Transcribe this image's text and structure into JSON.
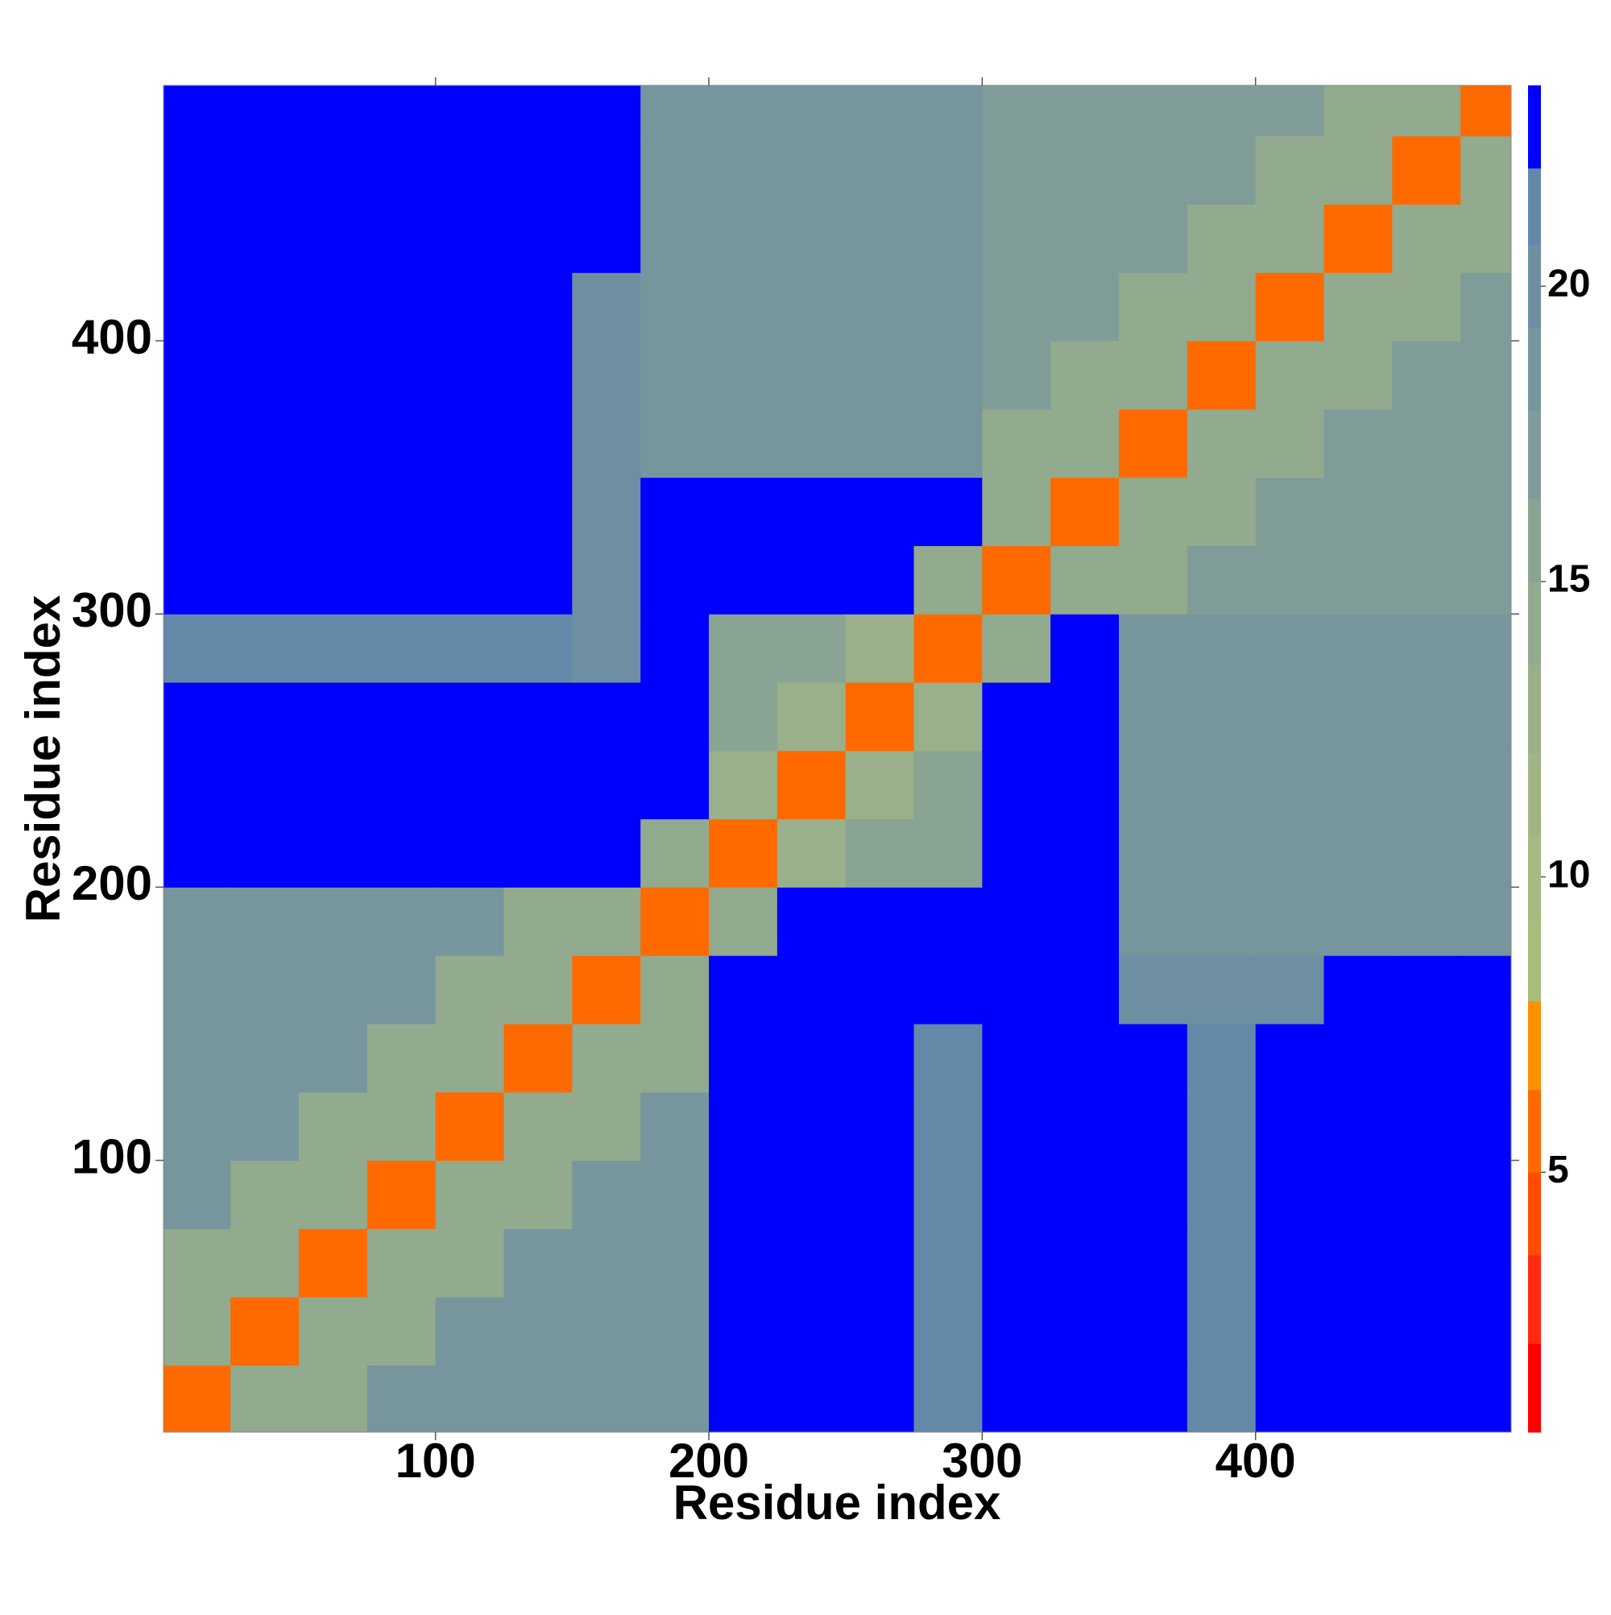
{
  "chart_data": {
    "type": "heatmap",
    "xlabel": "Residue index",
    "ylabel": "Residue index",
    "xlim": [
      0.5,
      493.5
    ],
    "ylim": [
      0.5,
      493.5
    ],
    "xticks": [
      100,
      200,
      300,
      400
    ],
    "yticks": [
      100,
      200,
      300,
      400
    ],
    "bins": [
      0.5,
      25,
      50,
      75,
      100,
      125,
      150,
      175,
      200,
      225,
      250,
      275,
      300,
      325,
      350,
      375,
      400,
      425,
      450,
      475,
      493.5
    ],
    "z": [
      [
        5,
        14,
        14,
        19,
        19,
        19,
        19,
        19,
        23,
        23,
        23,
        21,
        23,
        23,
        23,
        21,
        23,
        23,
        23,
        23
      ],
      [
        14,
        5,
        14,
        14,
        19,
        19,
        19,
        19,
        23,
        23,
        23,
        21,
        23,
        23,
        23,
        21,
        23,
        23,
        23,
        23
      ],
      [
        14,
        14,
        5,
        14,
        14,
        19,
        19,
        19,
        23,
        23,
        23,
        21,
        23,
        23,
        23,
        21,
        23,
        23,
        23,
        23
      ],
      [
        19,
        14,
        14,
        5,
        14,
        14,
        19,
        19,
        23,
        23,
        23,
        21,
        23,
        23,
        23,
        21,
        23,
        23,
        23,
        23
      ],
      [
        19,
        19,
        14,
        14,
        5,
        14,
        14,
        19,
        23,
        23,
        23,
        21,
        23,
        23,
        23,
        21,
        23,
        23,
        23,
        23
      ],
      [
        19,
        19,
        19,
        14,
        14,
        5,
        14,
        14,
        23,
        23,
        23,
        21,
        23,
        23,
        23,
        21,
        23,
        23,
        23,
        23
      ],
      [
        19,
        19,
        19,
        19,
        14,
        14,
        5,
        14,
        23,
        23,
        23,
        23,
        23,
        23,
        20,
        20,
        20,
        23,
        23,
        23
      ],
      [
        19,
        19,
        19,
        19,
        19,
        14,
        14,
        5,
        14,
        23,
        23,
        23,
        23,
        23,
        18,
        18,
        18,
        18,
        18,
        18
      ],
      [
        23,
        23,
        23,
        23,
        23,
        23,
        23,
        14,
        5,
        13,
        15,
        15,
        23,
        23,
        18,
        18,
        18,
        18,
        18,
        18
      ],
      [
        23,
        23,
        23,
        23,
        23,
        23,
        23,
        23,
        13,
        5,
        13,
        15,
        23,
        23,
        18,
        18,
        18,
        18,
        18,
        18
      ],
      [
        23,
        23,
        23,
        23,
        23,
        23,
        23,
        23,
        15,
        13,
        5,
        13,
        23,
        23,
        18,
        18,
        18,
        18,
        18,
        18
      ],
      [
        21,
        21,
        21,
        21,
        21,
        21,
        20,
        23,
        15,
        15,
        13,
        5,
        14,
        23,
        18,
        18,
        18,
        18,
        18,
        18
      ],
      [
        23,
        23,
        23,
        23,
        23,
        23,
        20,
        23,
        23,
        23,
        23,
        14,
        5,
        14,
        14,
        17,
        17,
        17,
        17,
        17
      ],
      [
        23,
        23,
        23,
        23,
        23,
        23,
        20,
        23,
        23,
        23,
        23,
        23,
        14,
        5,
        14,
        14,
        17,
        17,
        17,
        17
      ],
      [
        23,
        23,
        23,
        23,
        23,
        23,
        20,
        18,
        18,
        18,
        18,
        18,
        14,
        14,
        5,
        14,
        14,
        17,
        17,
        17
      ],
      [
        23,
        23,
        23,
        23,
        23,
        23,
        20,
        18,
        18,
        18,
        18,
        18,
        17,
        14,
        14,
        5,
        14,
        14,
        17,
        17
      ],
      [
        23,
        23,
        23,
        23,
        23,
        23,
        20,
        18,
        18,
        18,
        18,
        18,
        17,
        17,
        14,
        14,
        5,
        14,
        14,
        17
      ],
      [
        23,
        23,
        23,
        23,
        23,
        23,
        23,
        18,
        18,
        18,
        18,
        18,
        17,
        17,
        17,
        14,
        14,
        5,
        14,
        14
      ],
      [
        23,
        23,
        23,
        23,
        23,
        23,
        23,
        18,
        18,
        18,
        18,
        18,
        17,
        17,
        17,
        17,
        14,
        14,
        5,
        14
      ],
      [
        23,
        23,
        23,
        23,
        23,
        23,
        23,
        18,
        18,
        18,
        18,
        18,
        17,
        17,
        17,
        17,
        17,
        14,
        14,
        5
      ]
    ],
    "colorbar": {
      "levels": [
        0.6,
        2.1,
        3.6,
        5.0,
        6.4,
        7.9,
        9.3,
        10.7,
        12.1,
        13.6,
        15.0,
        16.4,
        17.9,
        19.3,
        20.7,
        22.0,
        23.4
      ],
      "colors": [
        "#ff0000",
        "#ff2a10",
        "#ff4b00",
        "#ff6a00",
        "#ff9000",
        "#a8bc7c",
        "#a5b981",
        "#a0b585",
        "#99b08a",
        "#92aa8e",
        "#8aa494",
        "#809c98",
        "#77959d",
        "#6e8fa2",
        "#6488a8",
        "#0000ff"
      ],
      "ticks": [
        5,
        10,
        15,
        20
      ]
    }
  }
}
